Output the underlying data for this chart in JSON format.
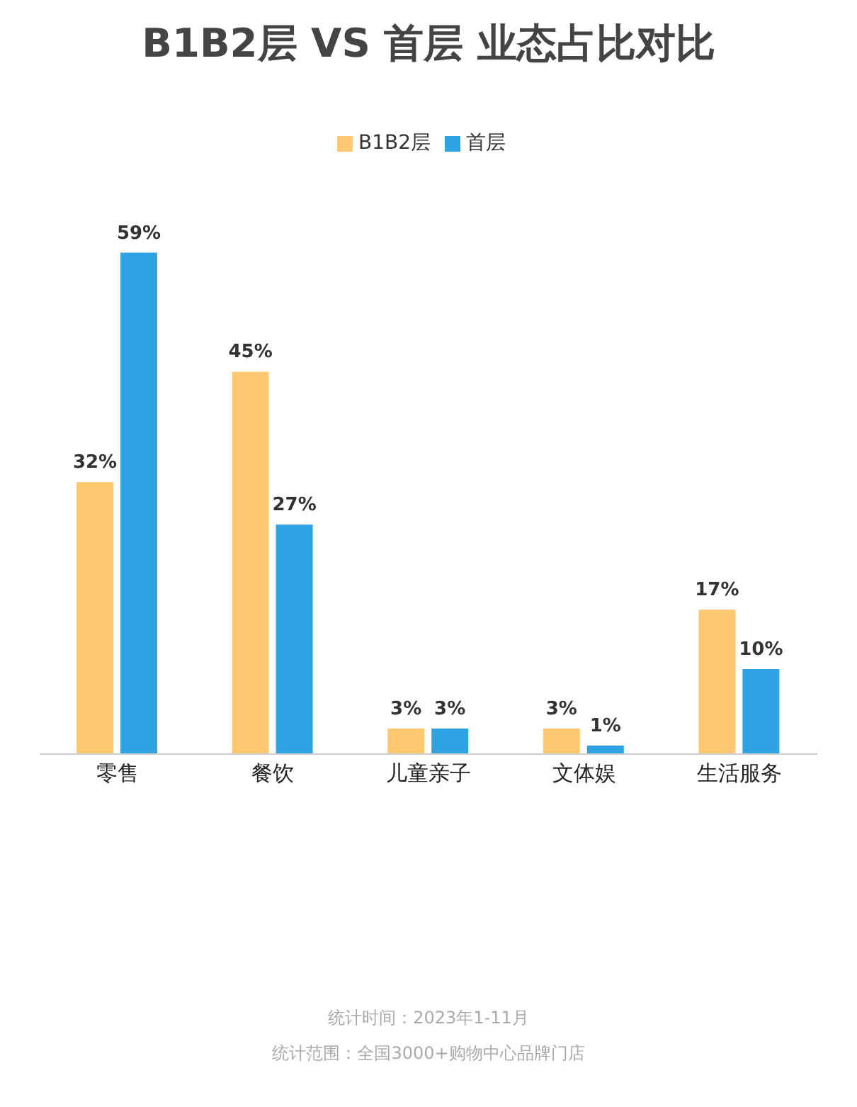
{
  "chart_data": {
    "type": "bar",
    "title": "B1B2层 VS 首层 业态占比对比",
    "categories": [
      "零售",
      "餐饮",
      "儿童亲子",
      "文体娱",
      "生活服务"
    ],
    "series": [
      {
        "name": "B1B2层",
        "color": "#ffc972",
        "values": [
          32,
          45,
          3,
          3,
          17
        ],
        "value_labels": [
          "32%",
          "45%",
          "3%",
          "3%",
          "17%"
        ]
      },
      {
        "name": "首层",
        "color": "#2ea2e2",
        "values": [
          59,
          27,
          3,
          1,
          10
        ],
        "value_labels": [
          "59%",
          "27%",
          "3%",
          "1%",
          "10%"
        ]
      }
    ],
    "legend": "top",
    "annotations": [
      "统计时间：2023年1-11月",
      "统计范围：全国3000+购物中心品牌门店"
    ]
  }
}
